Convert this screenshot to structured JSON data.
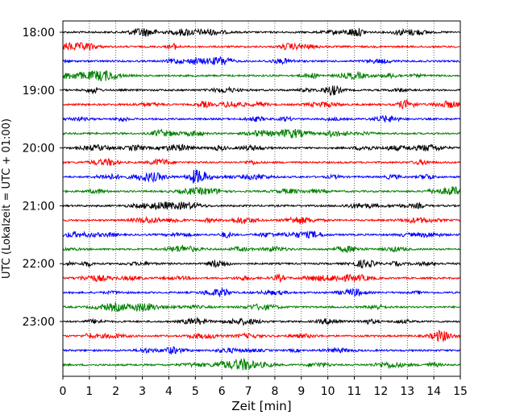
{
  "chart_data": {
    "type": "line",
    "title": "",
    "xlabel": "Zeit  [min]",
    "ylabel": "UTC (Lokalzeit = UTC + 01:00)",
    "xlim": [
      0,
      15
    ],
    "x_ticks": [
      "0",
      "1",
      "2",
      "3",
      "4",
      "5",
      "6",
      "7",
      "8",
      "9",
      "10",
      "11",
      "12",
      "13",
      "14",
      "15"
    ],
    "y_ticks": [
      "18:00",
      "19:00",
      "20:00",
      "21:00",
      "22:00",
      "23:00"
    ],
    "grid": "vertical dotted lines at each minute",
    "trace_interval_min": 15,
    "trace_start": "18:00",
    "trace_count": 24,
    "colors": [
      "#000000",
      "#ff0000",
      "#0000ff",
      "#008000"
    ]
  }
}
